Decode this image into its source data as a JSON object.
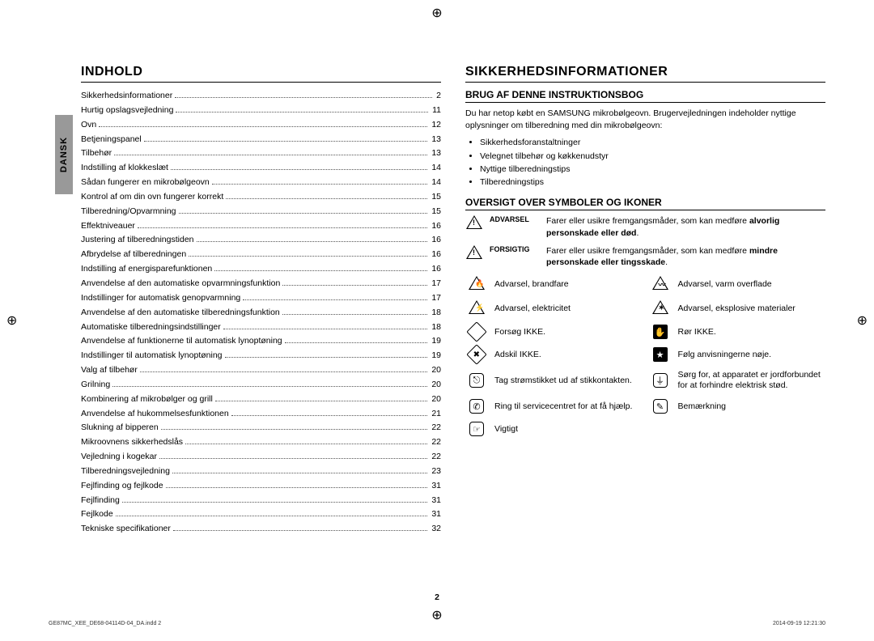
{
  "language_tab": "DANSK",
  "page_number": "2",
  "footer_left": "GE87MC_XEE_DE68-04114D-04_DA.indd   2",
  "footer_right": "2014-09-19   12:21:30",
  "left": {
    "heading": "INDHOLD",
    "toc": [
      {
        "t": "Sikkerhedsinformationer",
        "p": "2"
      },
      {
        "t": "Hurtig opslagsvejledning",
        "p": "11"
      },
      {
        "t": "Ovn",
        "p": "12"
      },
      {
        "t": "Betjeningspanel",
        "p": "13"
      },
      {
        "t": "Tilbehør",
        "p": "13"
      },
      {
        "t": "Indstilling af klokkeslæt",
        "p": "14"
      },
      {
        "t": "Sådan fungerer en mikrobølgeovn",
        "p": "14"
      },
      {
        "t": "Kontrol af om din ovn fungerer korrekt",
        "p": "15"
      },
      {
        "t": "Tilberedning/Opvarmning",
        "p": "15"
      },
      {
        "t": "Effektniveauer",
        "p": "16"
      },
      {
        "t": "Justering af tilberedningstiden",
        "p": "16"
      },
      {
        "t": "Afbrydelse af tilberedningen",
        "p": "16"
      },
      {
        "t": "Indstilling af energisparefunktionen",
        "p": "16"
      },
      {
        "t": "Anvendelse af den automatiske opvarmningsfunktion",
        "p": "17"
      },
      {
        "t": "Indstillinger for automatisk genopvarmning",
        "p": "17"
      },
      {
        "t": "Anvendelse af den automatiske tilberedningsfunktion",
        "p": "18"
      },
      {
        "t": "Automatiske tilberedningsindstillinger",
        "p": "18"
      },
      {
        "t": "Anvendelse af funktionerne til automatisk lynoptøning",
        "p": "19"
      },
      {
        "t": "Indstillinger til automatisk lynoptøning",
        "p": "19"
      },
      {
        "t": "Valg af tilbehør",
        "p": "20"
      },
      {
        "t": "Grilning",
        "p": "20"
      },
      {
        "t": "Kombinering af mikrobølger og grill",
        "p": "20"
      },
      {
        "t": "Anvendelse af hukommelsesfunktionen",
        "p": "21"
      },
      {
        "t": "Slukning af bipperen",
        "p": "22"
      },
      {
        "t": "Mikroovnens sikkerhedslås",
        "p": "22"
      },
      {
        "t": "Vejledning i kogekar",
        "p": "22"
      },
      {
        "t": "Tilberedningsvejledning",
        "p": "23"
      },
      {
        "t": "Fejlfinding og fejlkode",
        "p": "31"
      },
      {
        "t": "Fejlfinding",
        "p": "31"
      },
      {
        "t": "Fejlkode",
        "p": "31"
      },
      {
        "t": "Tekniske specifikationer",
        "p": "32"
      }
    ]
  },
  "right": {
    "heading": "SIKKERHEDSINFORMATIONER",
    "sub1": "BRUG AF DENNE INSTRUKTIONSBOG",
    "intro": "Du har netop købt en SAMSUNG mikrobølgeovn. Brugervejledningen indeholder nyttige oplysninger om tilberedning med din mikrobølgeovn:",
    "bullets": [
      "Sikkerhedsforanstaltninger",
      "Velegnet tilbehør og køkkenudstyr",
      "Nyttige tilberedningstips",
      "Tilberedningstips"
    ],
    "sub2": "OVERSIGT OVER SYMBOLER OG IKONER",
    "warn1_label": "ADVARSEL",
    "warn1_text_a": "Farer eller usikre fremgangsmåder, som kan medføre ",
    "warn1_text_b": "alvorlig personskade eller død",
    "warn2_label": "FORSIGTIG",
    "warn2_text_a": "Farer eller usikre fremgangsmåder, som kan medføre ",
    "warn2_text_b": "mindre personskade eller tingsskade",
    "icons": [
      {
        "a": "Advarsel, brandfare",
        "b": "Advarsel, varm overflade"
      },
      {
        "a": "Advarsel, elektricitet",
        "b": "Advarsel, eksplosive materialer"
      },
      {
        "a": "Forsøg IKKE.",
        "b": "Rør IKKE."
      },
      {
        "a": "Adskil IKKE.",
        "b": "Følg anvisningerne nøje."
      },
      {
        "a": "Tag strømstikket ud af stikkontakten.",
        "b": "Sørg for, at apparatet er jordforbundet for at forhindre elektrisk stød."
      },
      {
        "a": "Ring til servicecentret for at få hjælp.",
        "b": "Bemærkning"
      },
      {
        "a": "Vigtigt",
        "b": ""
      }
    ]
  }
}
